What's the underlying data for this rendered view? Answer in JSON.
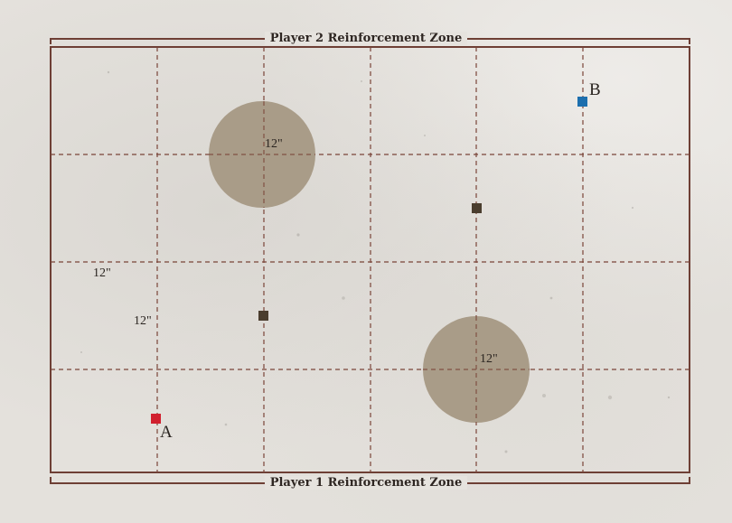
{
  "zones": {
    "top_label": "Player 2 Reinforcement Zone",
    "bottom_label": "Player 1 Reinforcement Zone"
  },
  "measurements": {
    "circle_top": "12\"",
    "circle_bottom": "12\"",
    "left_upper": "12\"",
    "left_lower": "12\""
  },
  "objectives": {
    "a_label": "A",
    "b_label": "B"
  },
  "colors": {
    "border": "#6e3f35",
    "grid": "#7a4438",
    "terrain": "#a99c88",
    "objective_a": "#d1202e",
    "objective_b": "#1d6fae",
    "neutral_marker": "#4a3d2e"
  }
}
